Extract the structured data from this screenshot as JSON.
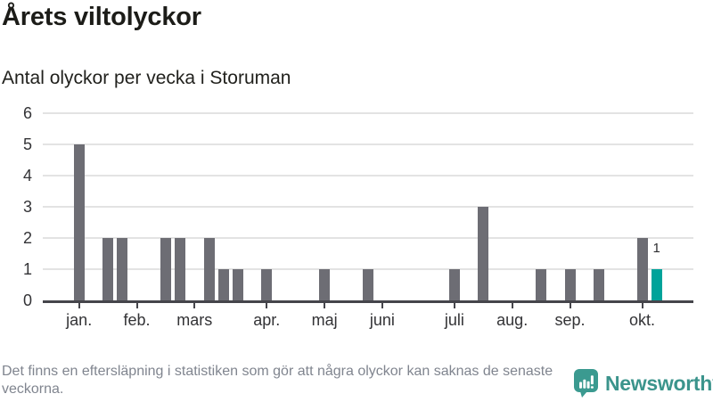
{
  "header": {
    "title": "Årets viltolyckor",
    "subtitle": "Antal olyckor per vecka i Storuman"
  },
  "chart_data": {
    "type": "bar",
    "title": "Årets viltolyckor",
    "subtitle": "Antal olyckor per vecka i Storuman",
    "x_unit": "vecka",
    "weeks": [
      1,
      2,
      3,
      4,
      5,
      6,
      7,
      8,
      9,
      10,
      11,
      12,
      13,
      14,
      15,
      16,
      17,
      18,
      19,
      20,
      21,
      22,
      23,
      24,
      25,
      26,
      27,
      28,
      29,
      30,
      31,
      32,
      33,
      34,
      35,
      36,
      37,
      38,
      39,
      40,
      41,
      42
    ],
    "values": [
      5,
      0,
      2,
      2,
      0,
      0,
      2,
      2,
      0,
      2,
      1,
      1,
      0,
      1,
      0,
      0,
      0,
      1,
      0,
      0,
      1,
      0,
      0,
      0,
      0,
      0,
      1,
      0,
      3,
      0,
      0,
      0,
      1,
      0,
      1,
      0,
      1,
      0,
      0,
      2,
      1,
      0
    ],
    "highlight": {
      "week": 41,
      "value": 1,
      "label": "1"
    },
    "y_ticks": [
      0,
      1,
      2,
      3,
      4,
      5,
      6
    ],
    "ylim": [
      0,
      6
    ],
    "grid": true,
    "month_ticks": [
      {
        "label": "jan.",
        "week": 1
      },
      {
        "label": "feb.",
        "week": 5
      },
      {
        "label": "mars",
        "week": 9
      },
      {
        "label": "apr.",
        "week": 14
      },
      {
        "label": "maj",
        "week": 18
      },
      {
        "label": "juni",
        "week": 22
      },
      {
        "label": "juli",
        "week": 27
      },
      {
        "label": "aug.",
        "week": 31
      },
      {
        "label": "sep.",
        "week": 35
      },
      {
        "label": "okt.",
        "week": 40
      }
    ],
    "colors": {
      "bar": "#6d6d74",
      "highlight": "#00a39a",
      "grid": "#e3e3e3",
      "axis": "#45454b",
      "label": "#333336"
    }
  },
  "footer": {
    "note": "Det finns en eftersläpning i statistiken som gör att några olyckor kan saknas de senaste veckorna.",
    "brand": "Newsworthy",
    "brand_color": "#3b948c"
  }
}
